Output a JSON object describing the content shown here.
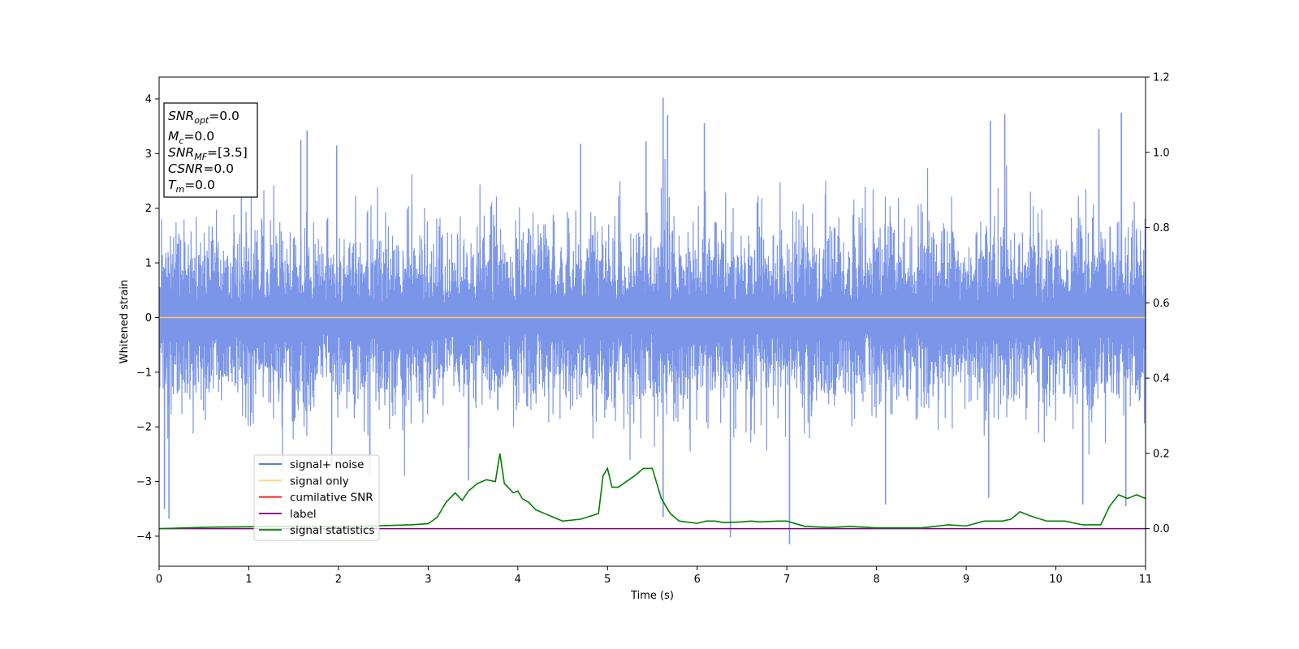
{
  "chart_data": {
    "type": "line",
    "xlabel": "Time (s)",
    "ylabel": "Whitened strain",
    "xlim": [
      0,
      11
    ],
    "ylim": [
      -4.55,
      4.4
    ],
    "y2lim": [
      -0.1,
      1.2
    ],
    "xticks": [
      "0",
      "1",
      "2",
      "3",
      "4",
      "5",
      "6",
      "7",
      "8",
      "9",
      "10",
      "11"
    ],
    "yticks": [
      "−4",
      "−3",
      "−2",
      "−1",
      "0",
      "1",
      "2",
      "3",
      "4"
    ],
    "y2ticks": [
      "0.0",
      "0.2",
      "0.4",
      "0.6",
      "0.8",
      "1.0",
      "1.2"
    ],
    "grid": false,
    "legend_position": "lower-left",
    "legend": [
      {
        "label": "signal+ noise",
        "color": "#4169e1"
      },
      {
        "label": "signal only",
        "color": "#ffd27f"
      },
      {
        "label": "cumilative SNR",
        "color": "#ff0000"
      },
      {
        "label": "label",
        "color": "#800080"
      },
      {
        "label": "signal statistics",
        "color": "#008000"
      }
    ],
    "annotation": [
      {
        "base": "SNR",
        "sub": "opt",
        "value": "=0.0"
      },
      {
        "base": "M",
        "sub": "c",
        "value": "=0.0"
      },
      {
        "base": "SNR",
        "sub": "MF",
        "value": "=[3.5]"
      },
      {
        "base": "CSNR",
        "sub": "",
        "value": "=0.0"
      },
      {
        "base": "T",
        "sub": "m",
        "value": "=0.0"
      }
    ],
    "series": [
      {
        "name": "signal+ noise",
        "axis": "left",
        "color": "#7b96e9",
        "kind": "noise",
        "typical_range": [
          -2.3,
          2.3
        ],
        "peaks": [
          {
            "x": 5.62,
            "y": 4.02
          },
          {
            "x": 5.67,
            "y": 3.7
          },
          {
            "x": 10.73,
            "y": 3.75
          },
          {
            "x": 9.43,
            "y": 3.72
          },
          {
            "x": 9.27,
            "y": 3.6
          },
          {
            "x": 1.65,
            "y": 3.42
          },
          {
            "x": 6.08,
            "y": 3.56
          },
          {
            "x": 5.43,
            "y": 3.23
          },
          {
            "x": 4.7,
            "y": 3.18
          },
          {
            "x": 10.48,
            "y": 3.45
          },
          {
            "x": 1.58,
            "y": 3.25
          },
          {
            "x": 1.98,
            "y": 3.15
          },
          {
            "x": 0.11,
            "y": -3.68
          },
          {
            "x": 0.06,
            "y": -3.5
          },
          {
            "x": 7.03,
            "y": -4.15
          },
          {
            "x": 6.37,
            "y": -4.02
          },
          {
            "x": 5.62,
            "y": -3.65
          },
          {
            "x": 8.1,
            "y": -3.42
          },
          {
            "x": 10.78,
            "y": -3.45
          },
          {
            "x": 9.25,
            "y": -3.3
          },
          {
            "x": 10.3,
            "y": -3.42
          },
          {
            "x": 2.35,
            "y": -2.85
          },
          {
            "x": 3.45,
            "y": -2.98
          }
        ]
      },
      {
        "name": "signal only",
        "axis": "left",
        "color": "#ffc56e",
        "x": [
          0,
          11
        ],
        "y": [
          0,
          0
        ]
      },
      {
        "name": "label",
        "axis": "right",
        "color": "#800080",
        "x": [
          0,
          11
        ],
        "y": [
          0,
          0
        ]
      },
      {
        "name": "signal statistics",
        "axis": "right",
        "color": "#008000",
        "x": [
          0,
          0.3,
          0.6,
          1.0,
          1.5,
          2.0,
          2.5,
          2.8,
          3.0,
          3.1,
          3.2,
          3.3,
          3.38,
          3.45,
          3.55,
          3.65,
          3.75,
          3.8,
          3.85,
          3.95,
          4.0,
          4.05,
          4.12,
          4.2,
          4.3,
          4.4,
          4.5,
          4.7,
          4.9,
          4.95,
          5.0,
          5.05,
          5.12,
          5.18,
          5.3,
          5.4,
          5.5,
          5.6,
          5.7,
          5.8,
          6.0,
          6.1,
          6.2,
          6.3,
          6.5,
          6.6,
          6.7,
          6.9,
          7.0,
          7.2,
          7.5,
          7.7,
          8.0,
          8.5,
          8.8,
          9.0,
          9.2,
          9.4,
          9.5,
          9.6,
          9.7,
          9.9,
          10.1,
          10.3,
          10.5,
          10.6,
          10.7,
          10.8,
          10.9,
          11.0
        ],
        "y": [
          0.0,
          0.002,
          0.004,
          0.005,
          0.006,
          0.005,
          0.008,
          0.01,
          0.013,
          0.03,
          0.07,
          0.095,
          0.075,
          0.1,
          0.12,
          0.13,
          0.125,
          0.2,
          0.12,
          0.095,
          0.1,
          0.08,
          0.07,
          0.05,
          0.04,
          0.03,
          0.02,
          0.025,
          0.04,
          0.14,
          0.16,
          0.11,
          0.11,
          0.12,
          0.14,
          0.16,
          0.16,
          0.08,
          0.04,
          0.02,
          0.014,
          0.02,
          0.02,
          0.016,
          0.018,
          0.02,
          0.018,
          0.02,
          0.02,
          0.006,
          0.003,
          0.006,
          0.002,
          0.002,
          0.01,
          0.007,
          0.02,
          0.02,
          0.025,
          0.045,
          0.035,
          0.02,
          0.02,
          0.01,
          0.01,
          0.06,
          0.09,
          0.08,
          0.09,
          0.08
        ]
      }
    ]
  }
}
